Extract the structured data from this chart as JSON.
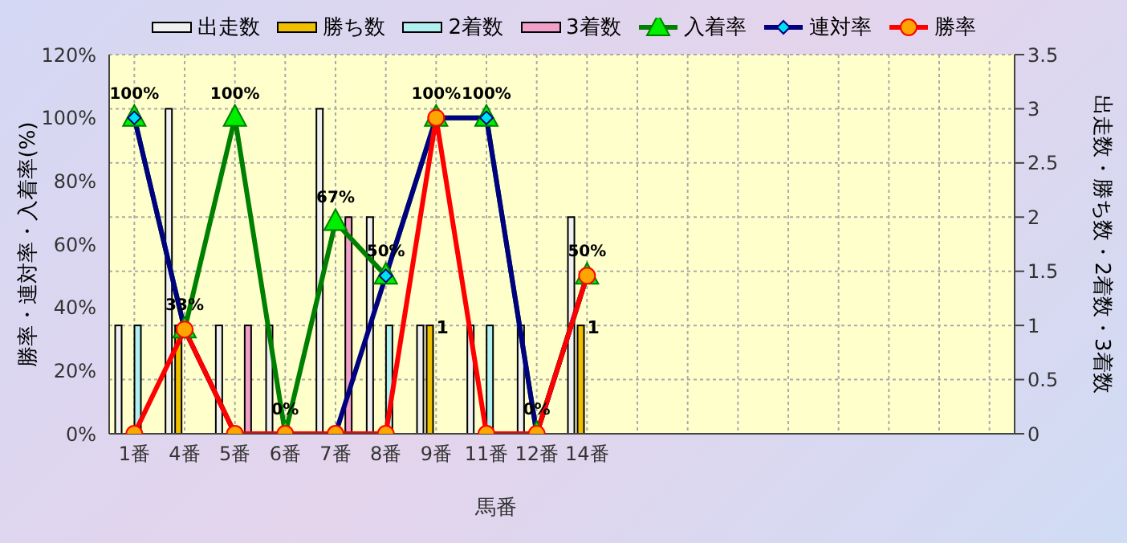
{
  "chart_data": {
    "type": "bar",
    "xlabel": "馬番",
    "ylabel": "勝率・連対率・入着率(%)",
    "y2label": "出走数・勝ち数・2着数・3着数",
    "categories": [
      "1番",
      "4番",
      "5番",
      "6番",
      "7番",
      "8番",
      "9番",
      "11番",
      "12番",
      "14番",
      null,
      null,
      null,
      null,
      null,
      null,
      null,
      null
    ],
    "series": [
      {
        "name": "出走数",
        "axis": "y2",
        "color": "#f0f0f0",
        "values": [
          1,
          3,
          1,
          1,
          3,
          2,
          1,
          1,
          1,
          2,
          null,
          null,
          null,
          null,
          null,
          null,
          null,
          null
        ]
      },
      {
        "name": "勝ち数",
        "axis": "y2",
        "color": "#f0c000",
        "values": [
          0,
          1,
          0,
          0,
          0,
          0,
          1,
          0,
          0,
          1,
          null,
          null,
          null,
          null,
          null,
          null,
          null,
          null
        ],
        "value_labels": [
          null,
          null,
          null,
          null,
          null,
          null,
          "1",
          null,
          null,
          "1",
          null,
          null,
          null,
          null,
          null,
          null,
          null,
          null
        ]
      },
      {
        "name": "2着数",
        "axis": "y2",
        "color": "#b0f0f0",
        "values": [
          1,
          0,
          0,
          0,
          0,
          1,
          0,
          1,
          0,
          0,
          null,
          null,
          null,
          null,
          null,
          null,
          null,
          null
        ]
      },
      {
        "name": "3着数",
        "axis": "y2",
        "color": "#f0a0c8",
        "values": [
          0,
          0,
          1,
          0,
          2,
          0,
          0,
          0,
          0,
          0,
          null,
          null,
          null,
          null,
          null,
          null,
          null,
          null
        ]
      },
      {
        "name": "入着率",
        "type": "line",
        "marker": "triangle",
        "color": "#008000",
        "values": [
          100,
          33,
          100,
          0,
          67,
          50,
          100,
          100,
          0,
          50,
          null,
          null,
          null,
          null,
          null,
          null,
          null,
          null
        ],
        "value_labels": [
          "100%",
          "33%",
          "100%",
          "0%",
          "67%",
          "50%",
          "100%",
          "100%",
          "0%",
          "50%",
          null,
          null,
          null,
          null,
          null,
          null,
          null,
          null
        ]
      },
      {
        "name": "連対率",
        "type": "line",
        "marker": "diamond",
        "color": "#000080",
        "values": [
          100,
          33,
          0,
          0,
          0,
          50,
          100,
          100,
          0,
          50,
          null,
          null,
          null,
          null,
          null,
          null,
          null,
          null
        ]
      },
      {
        "name": "勝率",
        "type": "line",
        "marker": "circle",
        "color": "#ff0000",
        "values": [
          0,
          33,
          0,
          0,
          0,
          0,
          100,
          0,
          0,
          50,
          null,
          null,
          null,
          null,
          null,
          null,
          null,
          null
        ]
      }
    ],
    "ylim": [
      0,
      120
    ],
    "yticks": [
      {
        "value": 0,
        "label": "0%"
      },
      {
        "value": 20,
        "label": "20%"
      },
      {
        "value": 40,
        "label": "40%"
      },
      {
        "value": 60,
        "label": "60%"
      },
      {
        "value": 80,
        "label": "80%"
      },
      {
        "value": 100,
        "label": "100%"
      },
      {
        "value": 120,
        "label": "120%"
      }
    ],
    "y2lim": [
      0,
      3.5
    ],
    "y2ticks": [
      0,
      0.5,
      1,
      1.5,
      2,
      2.5,
      3,
      3.5
    ],
    "grid": true,
    "legend": "top"
  }
}
